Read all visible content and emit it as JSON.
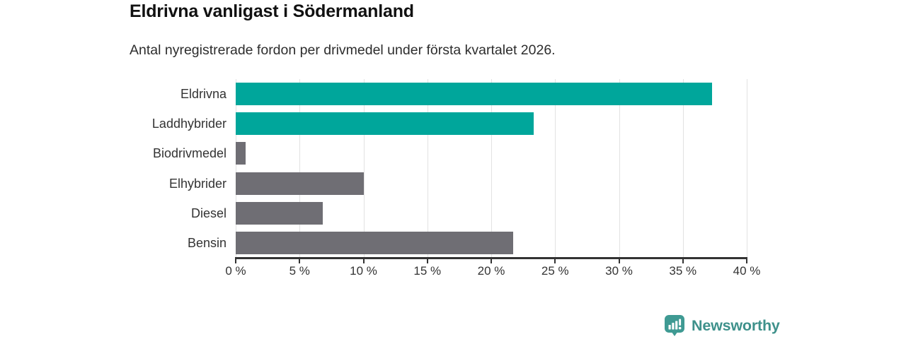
{
  "chart_data": {
    "type": "bar",
    "orientation": "horizontal",
    "title": "Eldrivna vanligast i Södermanland",
    "subtitle": "Antal nyregistrerade fordon per drivmedel under första kvartalet 2026.",
    "categories": [
      "Eldrivna",
      "Laddhybrider",
      "Biodrivmedel",
      "Elhybrider",
      "Diesel",
      "Bensin"
    ],
    "values": [
      37.3,
      23.3,
      0.8,
      10.0,
      6.8,
      21.7
    ],
    "unit": "%",
    "xlim": [
      0,
      40
    ],
    "x_ticks": [
      0,
      5,
      10,
      15,
      20,
      25,
      30,
      35,
      40
    ],
    "x_tick_labels": [
      "0 %",
      "5 %",
      "10 %",
      "15 %",
      "20 %",
      "25 %",
      "30 %",
      "35 %",
      "40 %"
    ],
    "grid": "vertical-gridlines",
    "legend": "none",
    "highlighted_categories": [
      "Eldrivna",
      "Laddhybrider"
    ],
    "colors": {
      "highlight_bar": "#00A69B",
      "default_bar": "#6F6E74",
      "axis": "#333333",
      "gridline": "#e2e2e2",
      "label_text": "#333333"
    },
    "bar_colors": [
      "#00A69B",
      "#00A69B",
      "#6F6E74",
      "#6F6E74",
      "#6F6E74",
      "#6F6E74"
    ]
  },
  "footer": {
    "brand": "Newsworthy",
    "brand_color": "#3E918B",
    "logo_icon": "newsworthy-chart-bubble-icon"
  }
}
